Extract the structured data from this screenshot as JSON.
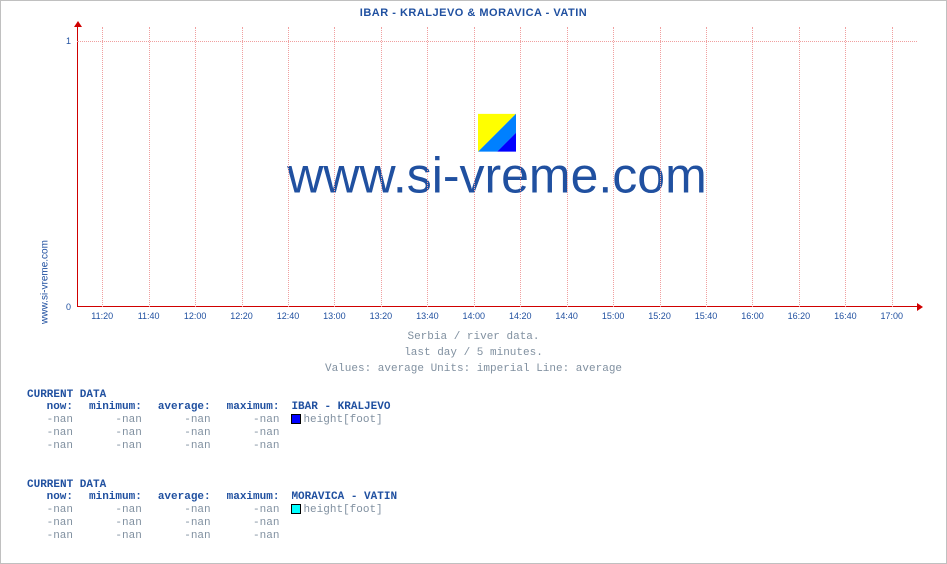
{
  "chart": {
    "title": "IBAR -  KRALJEVO &  MORAVICA -  VATIN",
    "ylabel_left": "www.si-vreme.com",
    "watermark": "www.si-vreme.com",
    "caption_line1": "Serbia / river data.",
    "caption_line2": "last day / 5 minutes.",
    "caption_line3": "Values: average  Units: imperial  Line: average",
    "type": "line",
    "background_color": "#ffffff",
    "axis_color": "#d00000",
    "grid_color": "#f0a0a0",
    "text_color": "#2050a0",
    "caption_color": "#8090a0",
    "ylim": [
      0,
      1
    ],
    "yticks": [
      0,
      1
    ],
    "xticks": [
      "11:20",
      "11:40",
      "12:00",
      "12:20",
      "12:40",
      "13:00",
      "13:20",
      "13:40",
      "14:00",
      "14:20",
      "14:40",
      "15:00",
      "15:20",
      "15:40",
      "16:00",
      "16:20",
      "16:40",
      "17:00"
    ],
    "watermark_logo_colors": [
      "#ffff00",
      "#0080ff",
      "#0000ff"
    ],
    "watermark_fontsize": 50,
    "title_fontsize": 11
  },
  "datablocks": [
    {
      "header": "CURRENT DATA",
      "columns": [
        "now:",
        "minimum:",
        "average:",
        "maximum:"
      ],
      "series_name": " IBAR -  KRALJEVO",
      "swatch_color": "#0000ff",
      "rows": [
        {
          "values": [
            "-nan",
            "-nan",
            "-nan",
            "-nan"
          ],
          "metric": "height[foot]",
          "show_swatch": true
        },
        {
          "values": [
            "-nan",
            "-nan",
            "-nan",
            "-nan"
          ],
          "metric": "",
          "show_swatch": false
        },
        {
          "values": [
            "-nan",
            "-nan",
            "-nan",
            "-nan"
          ],
          "metric": "",
          "show_swatch": false
        }
      ]
    },
    {
      "header": "CURRENT DATA",
      "columns": [
        "now:",
        "minimum:",
        "average:",
        "maximum:"
      ],
      "series_name": " MORAVICA -  VATIN",
      "swatch_color": "#00ffff",
      "rows": [
        {
          "values": [
            "-nan",
            "-nan",
            "-nan",
            "-nan"
          ],
          "metric": "height[foot]",
          "show_swatch": true
        },
        {
          "values": [
            "-nan",
            "-nan",
            "-nan",
            "-nan"
          ],
          "metric": "",
          "show_swatch": false
        },
        {
          "values": [
            "-nan",
            "-nan",
            "-nan",
            "-nan"
          ],
          "metric": "",
          "show_swatch": false
        }
      ]
    }
  ]
}
